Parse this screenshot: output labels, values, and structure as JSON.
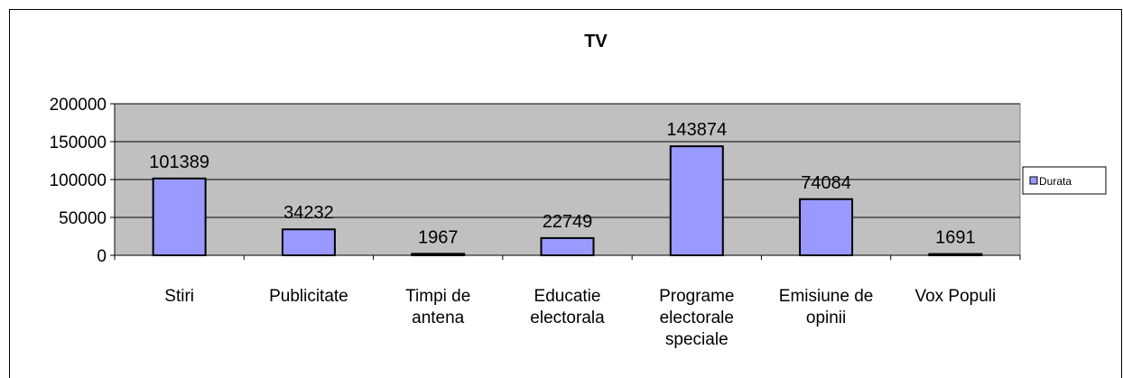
{
  "chart_data": {
    "type": "bar",
    "title": "TV",
    "categories": [
      "Stiri",
      "Publicitate",
      "Timpi de antena",
      "Educatie electorala",
      "Programe electorale speciale",
      "Emisiune de opinii",
      "Vox Populi"
    ],
    "series": [
      {
        "name": "Durata",
        "color": "#9999ff",
        "values": [
          101389,
          34232,
          1967,
          22749,
          143874,
          74084,
          1691
        ]
      }
    ],
    "ylim": [
      0,
      200000
    ],
    "yticks": [
      0,
      50000,
      100000,
      150000,
      200000
    ],
    "grid": true,
    "legend": "right"
  }
}
